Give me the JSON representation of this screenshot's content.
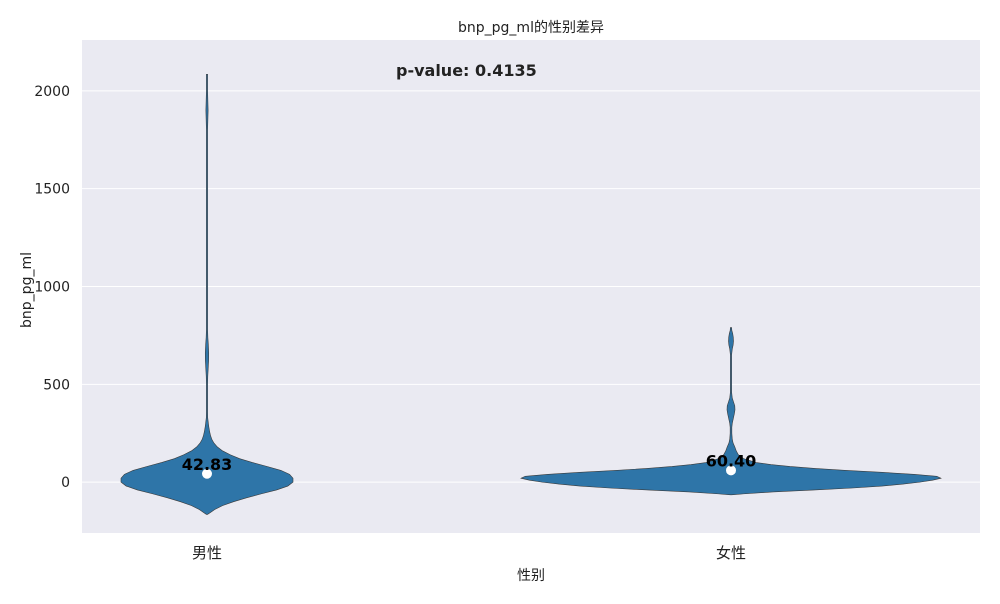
{
  "chart_data": {
    "type": "violin",
    "title": "bnp_pg_ml的性别差异",
    "xlabel": "性别",
    "ylabel": "bnp_pg_ml",
    "categories": [
      "男性",
      "女性"
    ],
    "ylim": [
      -260,
      2260
    ],
    "yticks": [
      0,
      500,
      1000,
      1500,
      2000
    ],
    "annotation": "p-value: 0.4135",
    "grid": true,
    "colors": {
      "violin": "#2e75a8",
      "background": "#eaeaf2",
      "grid": "#ffffff",
      "median_marker": "#ffffff"
    },
    "series": [
      {
        "category": "男性",
        "median": 42.83,
        "median_label": "42.83",
        "min": -165,
        "max": 2085,
        "density": [
          [
            -165,
            0.0
          ],
          [
            -155,
            0.04
          ],
          [
            -140,
            0.09
          ],
          [
            -120,
            0.18
          ],
          [
            -100,
            0.31
          ],
          [
            -80,
            0.46
          ],
          [
            -60,
            0.63
          ],
          [
            -40,
            0.81
          ],
          [
            -20,
            0.94
          ],
          [
            0,
            1.0
          ],
          [
            20,
            1.0
          ],
          [
            40,
            0.96
          ],
          [
            60,
            0.86
          ],
          [
            80,
            0.7
          ],
          [
            100,
            0.53
          ],
          [
            120,
            0.38
          ],
          [
            140,
            0.27
          ],
          [
            160,
            0.18
          ],
          [
            180,
            0.12
          ],
          [
            200,
            0.08
          ],
          [
            220,
            0.055
          ],
          [
            240,
            0.04
          ],
          [
            260,
            0.03
          ],
          [
            280,
            0.022
          ],
          [
            300,
            0.016
          ],
          [
            330,
            0.008
          ],
          [
            360,
            0.004
          ],
          [
            400,
            0.003
          ],
          [
            450,
            0.004
          ],
          [
            500,
            0.006
          ],
          [
            540,
            0.009
          ],
          [
            580,
            0.014
          ],
          [
            620,
            0.019
          ],
          [
            660,
            0.02
          ],
          [
            700,
            0.016
          ],
          [
            740,
            0.01
          ],
          [
            780,
            0.005
          ],
          [
            820,
            0.003
          ],
          [
            900,
            0.002
          ],
          [
            1000,
            0.002
          ],
          [
            1200,
            0.002
          ],
          [
            1400,
            0.002
          ],
          [
            1600,
            0.002
          ],
          [
            1750,
            0.003
          ],
          [
            1800,
            0.006
          ],
          [
            1850,
            0.01
          ],
          [
            1900,
            0.013
          ],
          [
            1950,
            0.01
          ],
          [
            2000,
            0.005
          ],
          [
            2040,
            0.003
          ],
          [
            2085,
            0.002
          ]
        ]
      },
      {
        "category": "女性",
        "median": 60.4,
        "median_label": "60.40",
        "min": -65,
        "max": 790,
        "density": [
          [
            -65,
            0.0
          ],
          [
            -60,
            0.06
          ],
          [
            -50,
            0.2
          ],
          [
            -40,
            0.4
          ],
          [
            -30,
            0.58
          ],
          [
            -20,
            0.72
          ],
          [
            -10,
            0.82
          ],
          [
            0,
            0.9
          ],
          [
            10,
            0.96
          ],
          [
            20,
            1.0
          ],
          [
            30,
            0.98
          ],
          [
            40,
            0.87
          ],
          [
            50,
            0.72
          ],
          [
            60,
            0.55
          ],
          [
            70,
            0.4
          ],
          [
            80,
            0.28
          ],
          [
            90,
            0.19
          ],
          [
            100,
            0.12
          ],
          [
            120,
            0.06
          ],
          [
            140,
            0.035
          ],
          [
            160,
            0.025
          ],
          [
            180,
            0.018
          ],
          [
            200,
            0.01
          ],
          [
            220,
            0.006
          ],
          [
            250,
            0.004
          ],
          [
            280,
            0.004
          ],
          [
            300,
            0.006
          ],
          [
            330,
            0.012
          ],
          [
            350,
            0.016
          ],
          [
            370,
            0.019
          ],
          [
            390,
            0.018
          ],
          [
            410,
            0.012
          ],
          [
            430,
            0.006
          ],
          [
            460,
            0.003
          ],
          [
            500,
            0.002
          ],
          [
            600,
            0.002
          ],
          [
            650,
            0.002
          ],
          [
            680,
            0.006
          ],
          [
            700,
            0.01
          ],
          [
            720,
            0.012
          ],
          [
            740,
            0.011
          ],
          [
            760,
            0.008
          ],
          [
            775,
            0.004
          ],
          [
            790,
            0.002
          ]
        ]
      }
    ]
  }
}
